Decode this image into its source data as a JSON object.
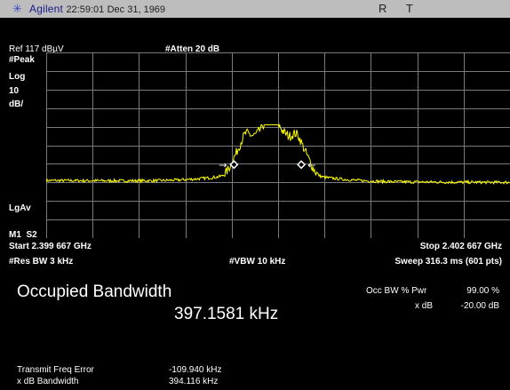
{
  "title_bar": {
    "logo_icon": "starburst-icon",
    "brand": "Agilent",
    "time": "22:59:01",
    "date": "Dec 31, 1969",
    "indicator_r": "R",
    "indicator_t": "T"
  },
  "display": {
    "ref_level": "Ref 117 dBµV",
    "atten": "#Atten 20 dB",
    "detector": "#Peak",
    "scale_type": "Log",
    "scale_value": "10",
    "scale_unit": "dB/",
    "avg_type": "LgAv",
    "marker_labels": "M1  S2"
  },
  "freq": {
    "start": "Start 2.399 667 GHz",
    "stop": "Stop 2.402 667 GHz",
    "rbw": "#Res BW 3 kHz",
    "vbw": "#VBW 10 kHz",
    "sweep": "Sweep 316.3 ms (601 pts)"
  },
  "measurement": {
    "name": "Occupied Bandwidth",
    "value": "397.1581 kHz",
    "occ_bw_label": "Occ BW % Pwr",
    "occ_bw_value": "99.00 %",
    "xdb_label": "x dB",
    "xdb_value": "-20.00 dB",
    "tfe_label": "Transmit Freq Error",
    "tfe_value": "-109.940 kHz",
    "xdbbw_label": "x dB Bandwidth",
    "xdbbw_value": "394.116 kHz"
  },
  "colors": {
    "background": "#000000",
    "trace": "#ffff00",
    "grid": "#7a7a7a",
    "title_bar": "#bdbdbd",
    "logo": "#3b46c9"
  },
  "trace": {
    "noise_floor_left_dbuv": 48,
    "noise_floor_right_dbuv": 47,
    "peak_dbuv": 78,
    "points": 601
  }
}
